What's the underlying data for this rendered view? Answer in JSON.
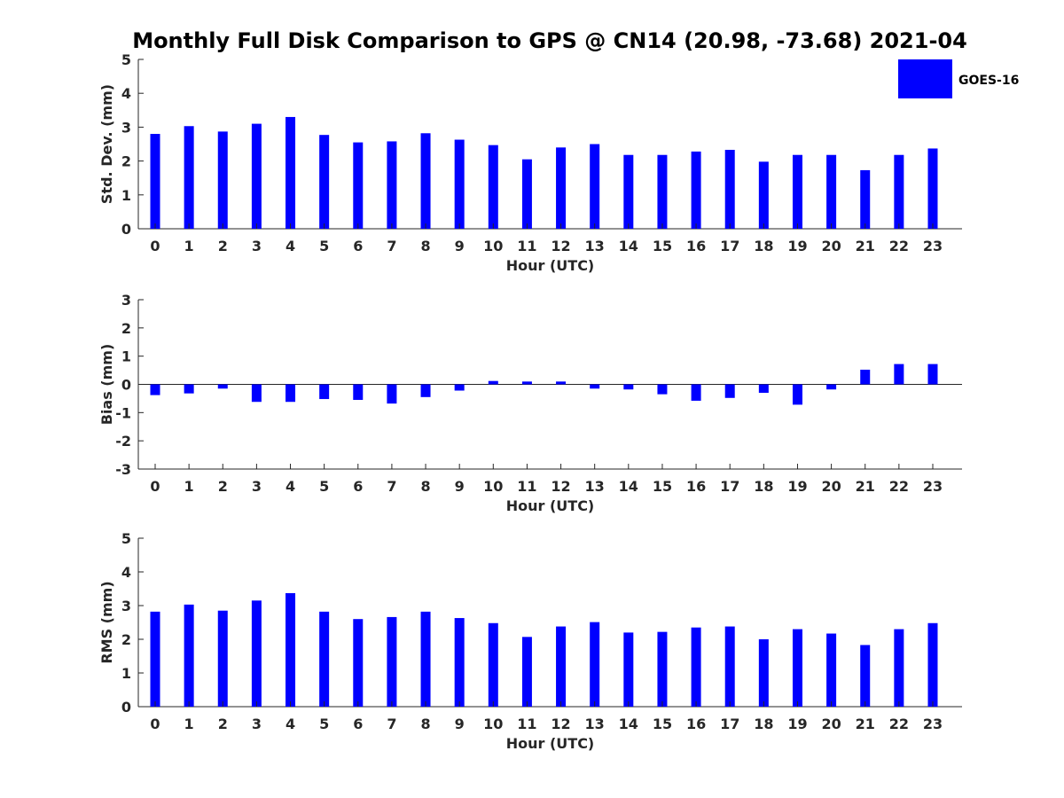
{
  "chart_data": {
    "type": "bar",
    "title": "Monthly Full Disk Comparison to GPS @ CN14 (20.98, -73.68) 2021-04",
    "legend": {
      "label": "GOES-16",
      "position": "top-right"
    },
    "bar_color": "#0000ff",
    "categories": [
      "0",
      "1",
      "2",
      "3",
      "4",
      "5",
      "6",
      "7",
      "8",
      "9",
      "10",
      "11",
      "12",
      "13",
      "14",
      "15",
      "16",
      "17",
      "18",
      "19",
      "20",
      "21",
      "22",
      "23"
    ],
    "panels": [
      {
        "name": "std",
        "xlabel": "Hour (UTC)",
        "ylabel": "Std. Dev. (mm)",
        "ylim": [
          0,
          5
        ],
        "yticks": [
          "0",
          "1",
          "2",
          "3",
          "4",
          "5"
        ],
        "values": [
          2.8,
          3.03,
          2.87,
          3.1,
          3.3,
          2.77,
          2.55,
          2.58,
          2.82,
          2.63,
          2.47,
          2.05,
          2.4,
          2.5,
          2.18,
          2.18,
          2.28,
          2.33,
          1.98,
          2.18,
          2.18,
          1.73,
          2.18,
          2.37
        ]
      },
      {
        "name": "bias",
        "xlabel": "Hour (UTC)",
        "ylabel": "Bias (mm)",
        "ylim": [
          -3,
          3
        ],
        "yticks": [
          "-3",
          "-2",
          "-1",
          "0",
          "1",
          "2",
          "3"
        ],
        "values": [
          -0.38,
          -0.32,
          -0.15,
          -0.62,
          -0.62,
          -0.52,
          -0.55,
          -0.68,
          -0.45,
          -0.22,
          0.12,
          0.1,
          0.1,
          -0.15,
          -0.18,
          -0.35,
          -0.58,
          -0.48,
          -0.3,
          -0.72,
          -0.18,
          0.52,
          0.72,
          0.72
        ]
      },
      {
        "name": "rms",
        "xlabel": "Hour (UTC)",
        "ylabel": "RMS (mm)",
        "ylim": [
          0,
          5
        ],
        "yticks": [
          "0",
          "1",
          "2",
          "3",
          "4",
          "5"
        ],
        "values": [
          2.82,
          3.03,
          2.85,
          3.15,
          3.37,
          2.82,
          2.6,
          2.66,
          2.82,
          2.63,
          2.48,
          2.07,
          2.38,
          2.51,
          2.2,
          2.22,
          2.35,
          2.38,
          2.0,
          2.3,
          2.17,
          1.83,
          2.3,
          2.48
        ]
      }
    ]
  }
}
